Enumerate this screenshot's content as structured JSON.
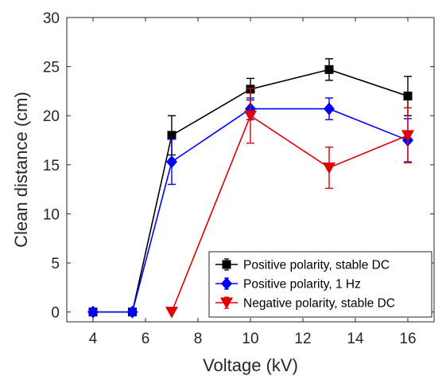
{
  "chart_data": {
    "type": "line",
    "xlabel": "Voltage (kV)",
    "ylabel": "Clean distance (cm)",
    "xlim": [
      3,
      17
    ],
    "ylim": [
      -1,
      30
    ],
    "xticks": [
      4,
      6,
      8,
      10,
      12,
      14,
      16
    ],
    "yticks": [
      0,
      5,
      10,
      15,
      20,
      25,
      30
    ],
    "grid": false,
    "legend_position": "bottom-right",
    "series": [
      {
        "name": "Positive polarity, stable DC",
        "color": "#000000",
        "marker": "square",
        "x": [
          4,
          5.5,
          7,
          10,
          13,
          16
        ],
        "y": [
          0,
          0,
          18,
          22.7,
          24.7,
          22
        ],
        "err": [
          0.3,
          0.3,
          2,
          1.1,
          1.1,
          2
        ]
      },
      {
        "name": "Positive polarity, 1 Hz",
        "color": "#0000ff",
        "marker": "diamond",
        "x": [
          4,
          5.5,
          7,
          10,
          13,
          16
        ],
        "y": [
          0,
          0,
          15.3,
          20.7,
          20.7,
          17.5
        ],
        "err": [
          0.3,
          0.3,
          2.3,
          1.1,
          1.1,
          2.2
        ]
      },
      {
        "name": "Negative polarity, stable DC",
        "color": "#e00000",
        "marker": "triangle-down",
        "x": [
          7,
          10,
          13,
          16
        ],
        "y": [
          0,
          20,
          14.7,
          18
        ],
        "err": [
          0,
          2.8,
          2.1,
          2.8
        ]
      }
    ]
  }
}
